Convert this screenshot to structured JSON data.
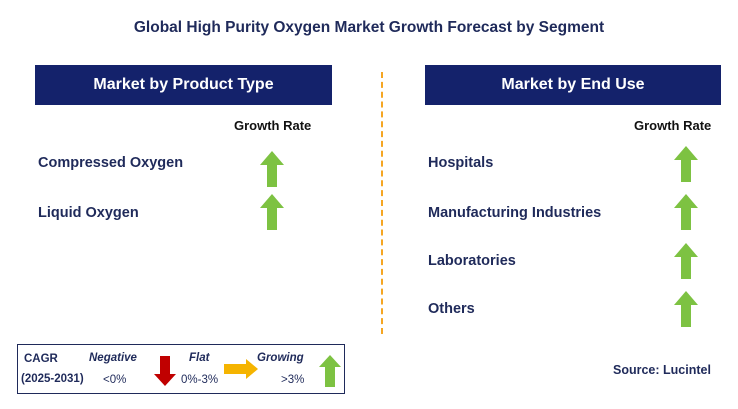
{
  "title": "Global High Purity Oxygen Market Growth Forecast by Segment",
  "left_panel": {
    "header": "Market by Product Type",
    "growth_label": "Growth Rate",
    "items": [
      {
        "label": "Compressed Oxygen",
        "trend": "growing"
      },
      {
        "label": "Liquid Oxygen",
        "trend": "growing"
      }
    ]
  },
  "right_panel": {
    "header": "Market by End Use",
    "growth_label": "Growth Rate",
    "items": [
      {
        "label": "Hospitals",
        "trend": "growing"
      },
      {
        "label": "Manufacturing Industries",
        "trend": "growing"
      },
      {
        "label": "Laboratories",
        "trend": "growing"
      },
      {
        "label": "Others",
        "trend": "growing"
      }
    ]
  },
  "legend": {
    "cagr": "CAGR",
    "period": "(2025-2031)",
    "negative_label": "Negative",
    "negative_range": "<0%",
    "flat_label": "Flat",
    "flat_range": "0%-3%",
    "growing_label": "Growing",
    "growing_range": ">3%"
  },
  "source": "Source: Lucintel",
  "colors": {
    "header_bg": "#14226b",
    "growing_arrow": "#7dc242",
    "negative_arrow": "#c00000",
    "flat_arrow": "#f5b400",
    "divider": "#f5a623"
  }
}
